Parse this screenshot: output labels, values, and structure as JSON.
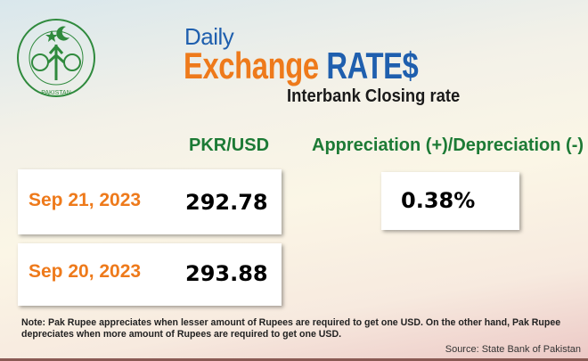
{
  "logo": {
    "text": "STATE BANK OF PAKISTAN",
    "color": "#2f8a3d"
  },
  "header": {
    "daily": "Daily",
    "title_orange": "Exchange",
    "title_blue": "RATE$",
    "subtitle": "Interbank Closing rate"
  },
  "columns": {
    "rate": "PKR/USD",
    "change": "Appreciation (+)/Depreciation (-)"
  },
  "rows": [
    {
      "date": "Sep 21, 2023",
      "rate": "292.78"
    },
    {
      "date": "Sep 20, 2023",
      "rate": "293.88"
    }
  ],
  "change_value": "0.38%",
  "note": "Note: Pak Rupee appreciates when lesser amount of Rupees are required to get one USD.  On the other hand, Pak Rupee depreciates when more amount of Rupees are required to get one USD.",
  "source": "Source: State Bank of Pakistan",
  "colors": {
    "orange": "#ee7a1b",
    "blue": "#1f5fae",
    "green": "#1c7a35"
  }
}
